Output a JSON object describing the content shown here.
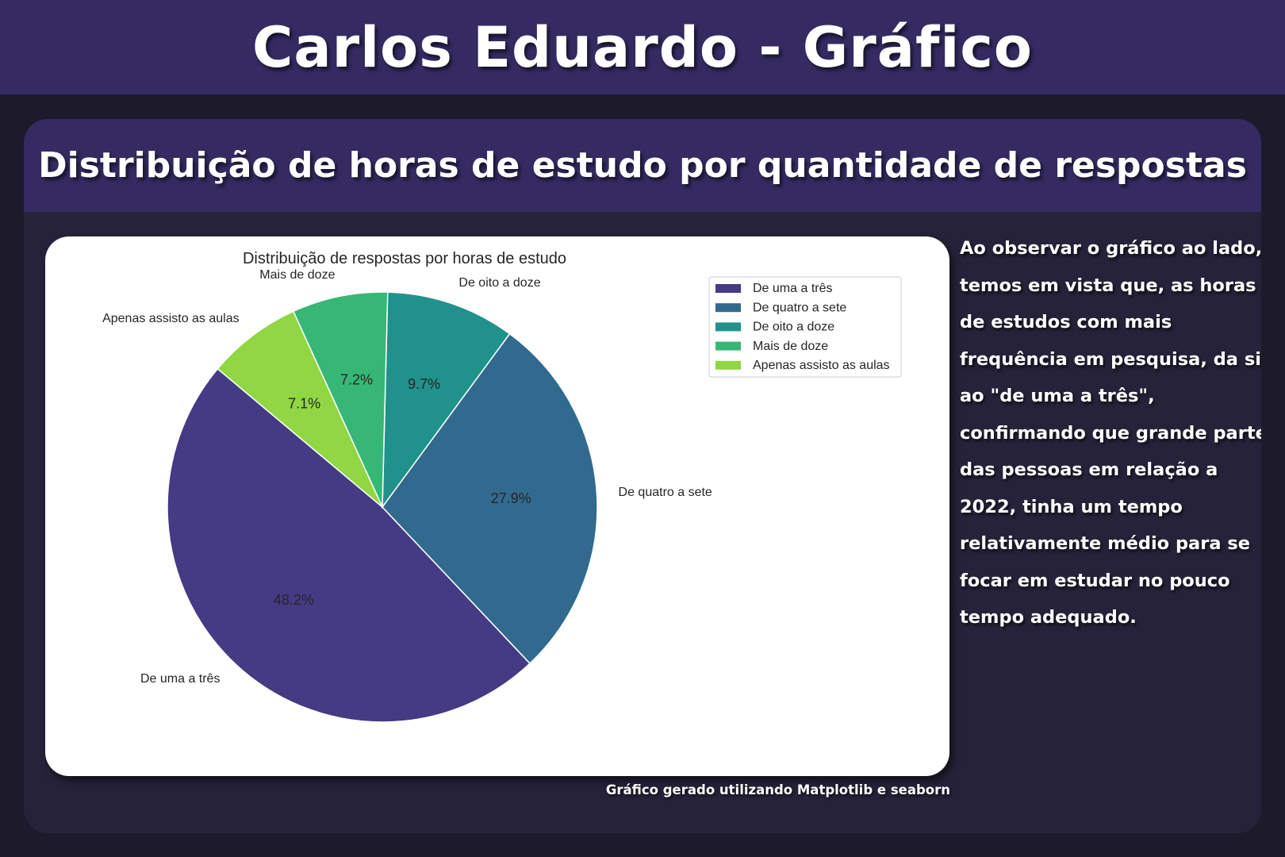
{
  "header": {
    "title": "Carlos Eduardo - Gráfico"
  },
  "card": {
    "title": "Distribuição de horas de estudo por quantidade de respostas"
  },
  "description": {
    "lines": [
      " Ao observar o gráfico ao lado,",
      "temos em vista que, as horas",
      "de estudos com mais",
      "frequência em pesquisa, da si",
      "ao \"de uma a três\",",
      "confirmando que grande parte",
      "das pessoas em relação a",
      "2022, tinha um tempo",
      "relativamente médio para se",
      "focar em estudar no pouco",
      "tempo adequado."
    ]
  },
  "footnote": "Gráfico gerado utilizando Matplotlib e seaborn",
  "chart_data": {
    "type": "pie",
    "title": "Distribuição de respostas por horas de estudo",
    "categories": [
      "De uma a três",
      "De quatro a sete",
      "De oito a doze",
      "Mais de doze",
      "Apenas assisto as aulas"
    ],
    "values": [
      48.2,
      27.9,
      9.7,
      7.2,
      7.1
    ],
    "value_labels": [
      "48.2%",
      "27.9%",
      "9.7%",
      "7.2%",
      "7.1%"
    ],
    "colors": [
      "#453a84",
      "#316a8e",
      "#21918c",
      "#37b776",
      "#90d743"
    ],
    "start_angle_deg": 140,
    "legend_placement": "upper-right"
  }
}
